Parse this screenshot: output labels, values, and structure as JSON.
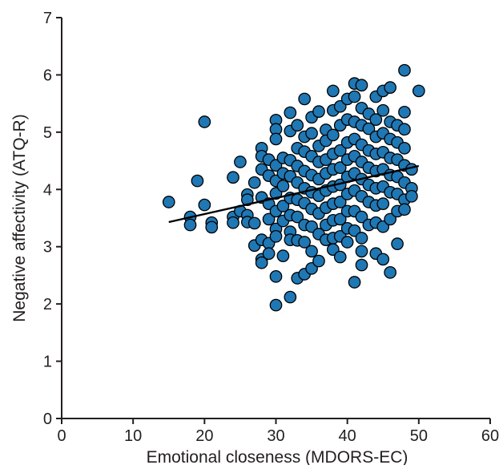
{
  "chart_data": {
    "type": "scatter",
    "xlabel": "Emotional closeness (MDORS-EC)",
    "ylabel": "Negative affectivity (ATQ-R)",
    "xlim": [
      0,
      60
    ],
    "ylim": [
      0,
      7
    ],
    "xticks": [
      "0",
      "10",
      "20",
      "30",
      "40",
      "50",
      "60"
    ],
    "yticks": [
      "0",
      "1",
      "2",
      "3",
      "4",
      "5",
      "6",
      "7"
    ],
    "grid": false,
    "legend": "none",
    "marker_color": "#1f77b4",
    "marker_edge_color": "#000000",
    "regression_line": {
      "x": [
        15,
        50
      ],
      "y": [
        3.43,
        4.41
      ],
      "color": "#000000"
    },
    "points": [
      [
        15,
        3.78
      ],
      [
        18,
        3.52
      ],
      [
        18,
        3.38
      ],
      [
        19,
        4.15
      ],
      [
        20,
        5.18
      ],
      [
        20,
        3.73
      ],
      [
        21,
        3.42
      ],
      [
        21,
        3.34
      ],
      [
        24,
        4.21
      ],
      [
        24,
        3.52
      ],
      [
        24,
        3.42
      ],
      [
        25,
        4.48
      ],
      [
        25,
        3.62
      ],
      [
        26,
        3.91
      ],
      [
        26,
        3.82
      ],
      [
        26,
        3.55
      ],
      [
        26,
        3.43
      ],
      [
        27,
        4.12
      ],
      [
        27,
        3.41
      ],
      [
        27,
        3.02
      ],
      [
        28,
        4.72
      ],
      [
        28,
        4.58
      ],
      [
        28,
        4.35
      ],
      [
        28,
        3.86
      ],
      [
        28,
        3.12
      ],
      [
        28,
        2.78
      ],
      [
        28,
        2.72
      ],
      [
        29,
        4.52
      ],
      [
        29,
        4.24
      ],
      [
        29,
        3.75
      ],
      [
        29,
        3.48
      ],
      [
        29,
        3.06
      ],
      [
        29,
        2.88
      ],
      [
        30,
        5.21
      ],
      [
        30,
        5.05
      ],
      [
        30,
        4.88
      ],
      [
        30,
        4.42
      ],
      [
        30,
        4.15
      ],
      [
        30,
        3.93
      ],
      [
        30,
        3.62
      ],
      [
        30,
        3.31
      ],
      [
        30,
        3.18
      ],
      [
        30,
        2.48
      ],
      [
        30,
        1.98
      ],
      [
        31,
        4.55
      ],
      [
        31,
        4.28
      ],
      [
        31,
        4.06
      ],
      [
        31,
        3.71
      ],
      [
        31,
        3.45
      ],
      [
        31,
        2.84
      ],
      [
        32,
        5.34
      ],
      [
        32,
        5.02
      ],
      [
        32,
        4.51
      ],
      [
        32,
        4.23
      ],
      [
        32,
        3.85
      ],
      [
        32,
        3.55
      ],
      [
        32,
        3.26
      ],
      [
        32,
        3.12
      ],
      [
        32,
        2.12
      ],
      [
        33,
        5.12
      ],
      [
        33,
        4.72
      ],
      [
        33,
        4.41
      ],
      [
        33,
        4.12
      ],
      [
        33,
        3.82
      ],
      [
        33,
        3.52
      ],
      [
        33,
        3.11
      ],
      [
        33,
        2.45
      ],
      [
        34,
        5.58
      ],
      [
        34,
        4.92
      ],
      [
        34,
        4.66
      ],
      [
        34,
        4.32
      ],
      [
        34,
        4.02
      ],
      [
        34,
        3.76
      ],
      [
        34,
        3.38
      ],
      [
        34,
        3.08
      ],
      [
        34,
        2.52
      ],
      [
        35,
        5.26
      ],
      [
        35,
        4.98
      ],
      [
        35,
        4.58
      ],
      [
        35,
        4.25
      ],
      [
        35,
        3.95
      ],
      [
        35,
        3.66
      ],
      [
        35,
        3.35
      ],
      [
        35,
        2.92
      ],
      [
        35,
        2.62
      ],
      [
        36,
        5.36
      ],
      [
        36,
        4.76
      ],
      [
        36,
        4.48
      ],
      [
        36,
        4.18
      ],
      [
        36,
        3.89
      ],
      [
        36,
        3.58
      ],
      [
        36,
        3.22
      ],
      [
        36,
        2.75
      ],
      [
        37,
        5.04
      ],
      [
        37,
        4.85
      ],
      [
        37,
        4.52
      ],
      [
        37,
        4.28
      ],
      [
        37,
        3.98
      ],
      [
        37,
        3.68
      ],
      [
        37,
        3.38
      ],
      [
        37,
        3.12
      ],
      [
        38,
        5.72
      ],
      [
        38,
        5.38
      ],
      [
        38,
        4.95
      ],
      [
        38,
        4.62
      ],
      [
        38,
        4.35
      ],
      [
        38,
        4.05
      ],
      [
        38,
        3.75
      ],
      [
        38,
        3.46
      ],
      [
        38,
        3.15
      ],
      [
        38,
        2.95
      ],
      [
        39,
        5.45
      ],
      [
        39,
        5.12
      ],
      [
        39,
        4.68
      ],
      [
        39,
        4.38
      ],
      [
        39,
        4.08
      ],
      [
        39,
        3.78
      ],
      [
        39,
        3.48
      ],
      [
        39,
        3.18
      ],
      [
        39,
        2.82
      ],
      [
        40,
        5.58
      ],
      [
        40,
        5.22
      ],
      [
        40,
        4.82
      ],
      [
        40,
        4.52
      ],
      [
        40,
        4.22
      ],
      [
        40,
        3.92
      ],
      [
        40,
        3.62
      ],
      [
        40,
        3.32
      ],
      [
        40,
        3.08
      ],
      [
        41,
        5.85
      ],
      [
        41,
        5.62
      ],
      [
        41,
        5.18
      ],
      [
        41,
        4.88
      ],
      [
        41,
        4.58
      ],
      [
        41,
        4.28
      ],
      [
        41,
        3.98
      ],
      [
        41,
        3.62
      ],
      [
        41,
        3.28
      ],
      [
        41,
        2.38
      ],
      [
        42,
        5.82
      ],
      [
        42,
        5.42
      ],
      [
        42,
        5.12
      ],
      [
        42,
        4.78
      ],
      [
        42,
        4.48
      ],
      [
        42,
        4.18
      ],
      [
        42,
        3.88
      ],
      [
        42,
        3.52
      ],
      [
        42,
        3.15
      ],
      [
        42,
        2.92
      ],
      [
        42,
        2.68
      ],
      [
        43,
        5.32
      ],
      [
        43,
        5.06
      ],
      [
        43,
        4.68
      ],
      [
        43,
        4.38
      ],
      [
        43,
        4.08
      ],
      [
        43,
        3.78
      ],
      [
        43,
        3.38
      ],
      [
        44,
        5.62
      ],
      [
        44,
        5.22
      ],
      [
        44,
        4.92
      ],
      [
        44,
        4.62
      ],
      [
        44,
        4.32
      ],
      [
        44,
        4.02
      ],
      [
        44,
        3.72
      ],
      [
        44,
        3.42
      ],
      [
        44,
        2.88
      ],
      [
        45,
        5.72
      ],
      [
        45,
        5.38
      ],
      [
        45,
        4.98
      ],
      [
        45,
        4.65
      ],
      [
        45,
        4.35
      ],
      [
        45,
        4.05
      ],
      [
        45,
        3.75
      ],
      [
        45,
        3.35
      ],
      [
        45,
        2.78
      ],
      [
        46,
        5.78
      ],
      [
        46,
        5.18
      ],
      [
        46,
        4.88
      ],
      [
        46,
        4.55
      ],
      [
        46,
        4.25
      ],
      [
        46,
        3.95
      ],
      [
        46,
        3.48
      ],
      [
        46,
        2.55
      ],
      [
        47,
        5.12
      ],
      [
        47,
        4.82
      ],
      [
        47,
        4.52
      ],
      [
        47,
        4.22
      ],
      [
        47,
        3.92
      ],
      [
        47,
        3.62
      ],
      [
        47,
        3.05
      ],
      [
        48,
        6.08
      ],
      [
        48,
        5.35
      ],
      [
        48,
        5.05
      ],
      [
        48,
        4.72
      ],
      [
        48,
        4.42
      ],
      [
        48,
        4.12
      ],
      [
        48,
        3.82
      ],
      [
        48,
        3.65
      ],
      [
        49,
        4.35
      ],
      [
        49,
        4.02
      ],
      [
        49,
        3.88
      ],
      [
        50,
        5.72
      ]
    ]
  }
}
